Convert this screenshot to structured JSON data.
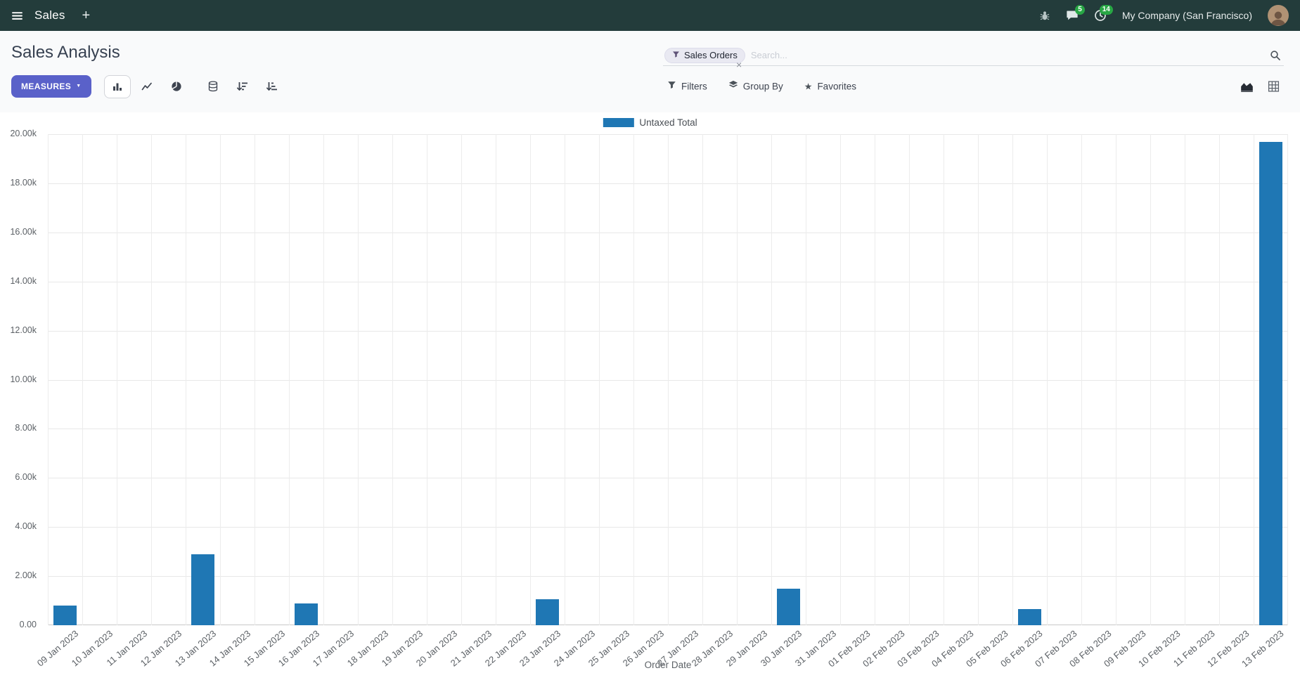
{
  "topbar": {
    "app_name": "Sales",
    "company": "My Company (San Francisco)",
    "chat_badge": "5",
    "activity_badge": "14"
  },
  "icons": {
    "plus_icon": "+",
    "caret_down_icon": "▼",
    "star_icon": "★",
    "facet_remove_icon": "×"
  },
  "control_panel": {
    "title": "Sales Analysis",
    "measures_label": "MEASURES",
    "filters_label": "Filters",
    "group_by_label": "Group By",
    "favorites_label": "Favorites",
    "search": {
      "facet_label": "Sales Orders",
      "placeholder": "Search..."
    }
  },
  "colors": {
    "topbar_bg": "#233c3b",
    "primary_button": "#5a61c9",
    "bar_color": "#1f77b4",
    "badge_green": "#28a745"
  },
  "chart_data": {
    "type": "bar",
    "title": "",
    "xlabel": "Order Date",
    "ylabel": "",
    "ylim": [
      0,
      20000
    ],
    "y_tick_step": 2000,
    "y_tick_format": "thousands-k (0 shown as 0.00)",
    "legend_position": "top",
    "grid": true,
    "categories": [
      "09 Jan 2023",
      "10 Jan 2023",
      "11 Jan 2023",
      "12 Jan 2023",
      "13 Jan 2023",
      "14 Jan 2023",
      "15 Jan 2023",
      "16 Jan 2023",
      "17 Jan 2023",
      "18 Jan 2023",
      "19 Jan 2023",
      "20 Jan 2023",
      "21 Jan 2023",
      "22 Jan 2023",
      "23 Jan 2023",
      "24 Jan 2023",
      "25 Jan 2023",
      "26 Jan 2023",
      "27 Jan 2023",
      "28 Jan 2023",
      "29 Jan 2023",
      "30 Jan 2023",
      "31 Jan 2023",
      "01 Feb 2023",
      "02 Feb 2023",
      "03 Feb 2023",
      "04 Feb 2023",
      "05 Feb 2023",
      "06 Feb 2023",
      "07 Feb 2023",
      "08 Feb 2023",
      "09 Feb 2023",
      "10 Feb 2023",
      "11 Feb 2023",
      "12 Feb 2023",
      "13 Feb 2023"
    ],
    "series": [
      {
        "name": "Untaxed Total",
        "color": "#1f77b4",
        "values": [
          800,
          0,
          0,
          0,
          2900,
          0,
          0,
          900,
          0,
          0,
          0,
          0,
          0,
          0,
          1050,
          0,
          0,
          0,
          0,
          0,
          0,
          1500,
          0,
          0,
          0,
          0,
          0,
          0,
          650,
          0,
          0,
          0,
          0,
          0,
          0,
          19700
        ]
      }
    ]
  }
}
